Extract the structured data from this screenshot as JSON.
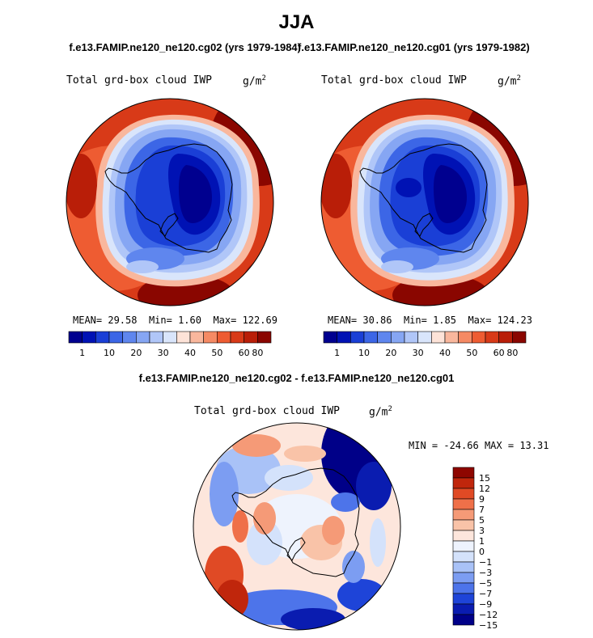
{
  "page": {
    "title": "JJA",
    "case_left": "f.e13.FAMIP.ne120_ne120.cg02 (yrs 1979-1984)",
    "case_right": "f.e13.FAMIP.ne120_ne120.cg01 (yrs 1979-1982)",
    "diff_title": "f.e13.FAMIP.ne120_ne120.cg02 - f.e13.FAMIP.ne120_ne120.cg01"
  },
  "colors": {
    "abs_scale": [
      "#00008f",
      "#0012b4",
      "#1a3fd6",
      "#3c66e6",
      "#5f86ee",
      "#86a6f3",
      "#b0c6f8",
      "#d9e5fb",
      "#fde3d8",
      "#f9b79d",
      "#f58a64",
      "#ee5c32",
      "#d83a18",
      "#b91e08",
      "#8a0600"
    ],
    "diff_scale": [
      "#000088",
      "#0a1cb0",
      "#1e44d8",
      "#4d74ea",
      "#7c9df2",
      "#a9c2f7",
      "#d4e2fb",
      "#eef3fd",
      "#fde6dc",
      "#f9c3a8",
      "#f59a77",
      "#ef7049",
      "#e04a25",
      "#c0260c",
      "#8e0600"
    ]
  },
  "chart_data": [
    {
      "type": "heatmap",
      "projection": "south-polar-stereographic",
      "title": "Total grd-box cloud IWP",
      "units": "g/m²",
      "units_base": "g/m",
      "units_exp": "2",
      "stats": {
        "mean_label": "MEAN=",
        "mean": "29.58",
        "min_label": "Min=",
        "min": "1.60",
        "max_label": "Max=",
        "max": "122.69"
      },
      "colorbar_ticks": [
        "1",
        "10",
        "20",
        "30",
        "40",
        "50",
        "60",
        "80"
      ]
    },
    {
      "type": "heatmap",
      "projection": "south-polar-stereographic",
      "title": "Total grd-box cloud IWP",
      "units": "g/m²",
      "units_base": "g/m",
      "units_exp": "2",
      "stats": {
        "mean_label": "MEAN=",
        "mean": "30.86",
        "min_label": "Min=",
        "min": "1.85",
        "max_label": "Max=",
        "max": "124.23"
      },
      "colorbar_ticks": [
        "1",
        "10",
        "20",
        "30",
        "40",
        "50",
        "60",
        "80"
      ]
    },
    {
      "type": "heatmap",
      "projection": "south-polar-stereographic",
      "title": "Total grd-box cloud IWP",
      "units": "g/m²",
      "units_base": "g/m",
      "units_exp": "2",
      "stats": {
        "min_label": "MIN =",
        "min": "-24.66",
        "max_label": "MAX =",
        "max": "13.31"
      },
      "colorbar_ticks": [
        "15",
        "12",
        "9",
        "7",
        "5",
        "3",
        "1",
        "0",
        "−1",
        "−3",
        "−5",
        "−7",
        "−9",
        "−12",
        "−15"
      ]
    }
  ]
}
